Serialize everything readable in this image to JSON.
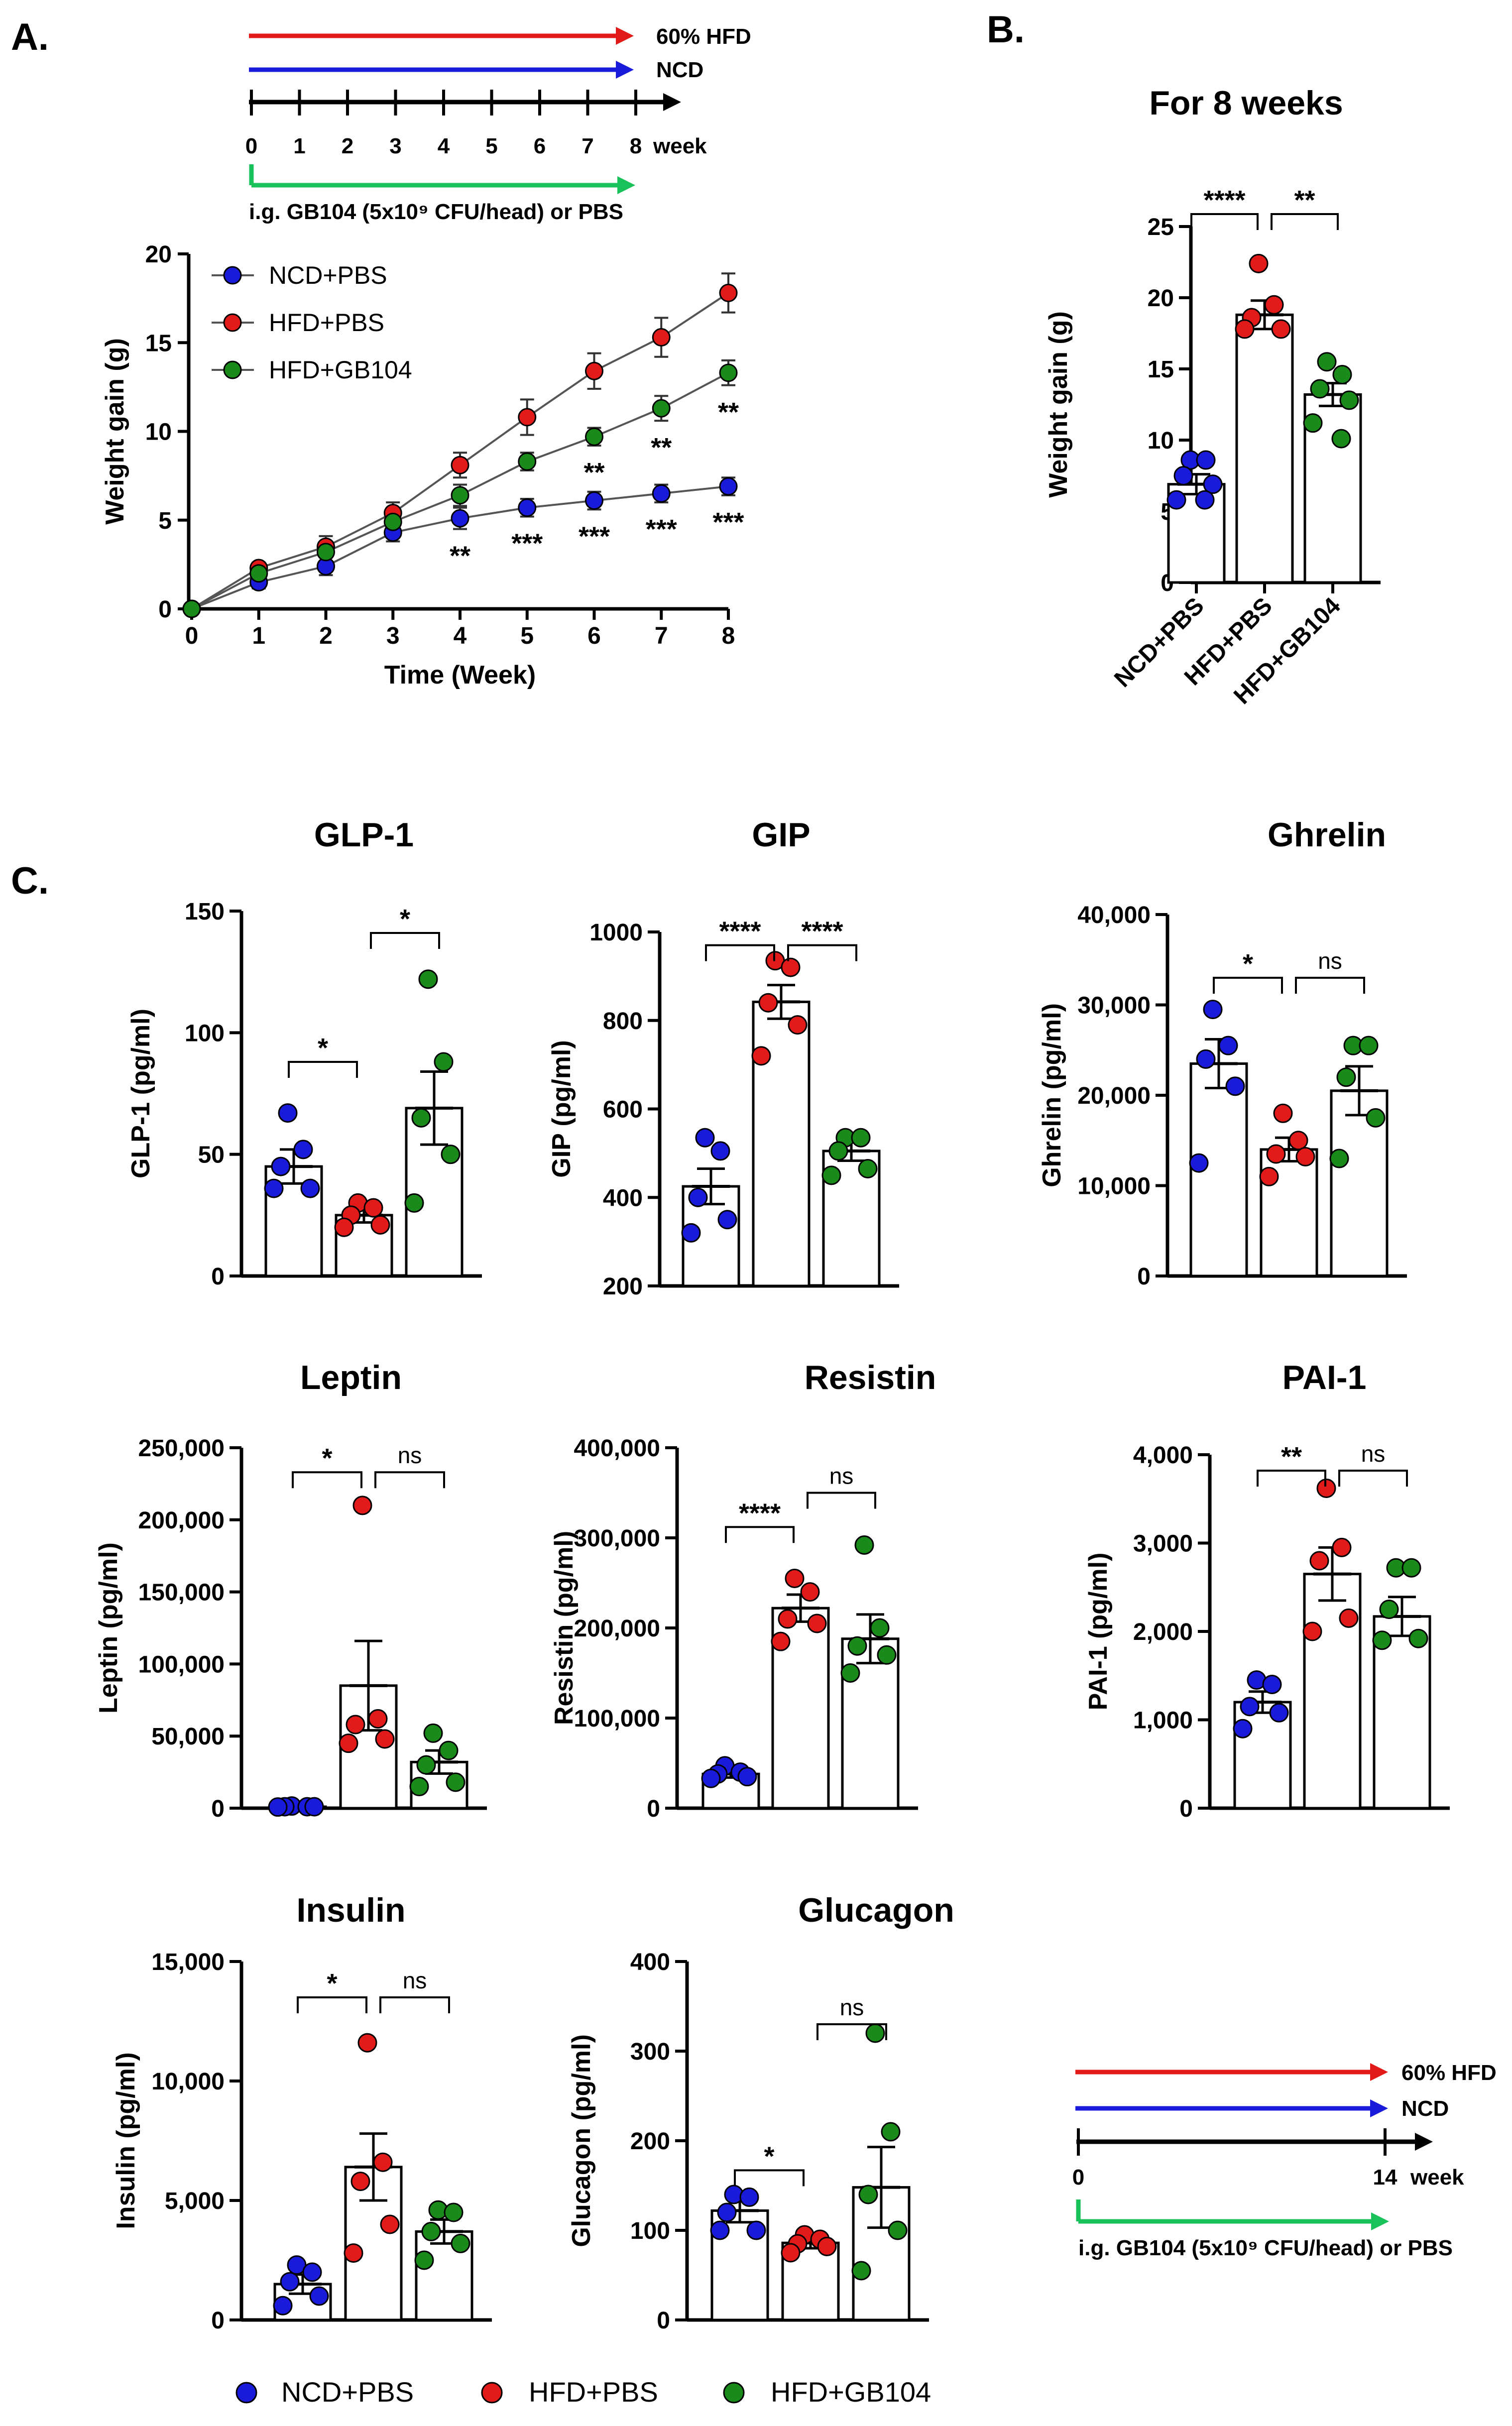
{
  "panels": {
    "a": "A.",
    "b": "B.",
    "c": "C."
  },
  "colors": {
    "ncd": "#1a1adb",
    "hfd": "#e31a1a",
    "gb104": "#1a8a1a",
    "arrow_green": "#19c15a"
  },
  "timeline_a": {
    "hfd_label": "60% HFD",
    "ncd_label": "NCD",
    "ticks": [
      "0",
      "1",
      "2",
      "3",
      "4",
      "5",
      "6",
      "7",
      "8"
    ],
    "unit": "week",
    "treatment": "i.g. GB104 (5x10⁹ CFU/head) or PBS"
  },
  "timeline_c": {
    "hfd_label": "60% HFD",
    "ncd_label": "NCD",
    "start": "0",
    "end": "14",
    "unit": "week",
    "treatment": "i.g. GB104 (5x10⁹ CFU/head) or PBS"
  },
  "legend_bottom": {
    "ncd": "NCD+PBS",
    "hfd": "HFD+PBS",
    "gb104": "HFD+GB104"
  },
  "chart_data": [
    {
      "id": "weight_line",
      "type": "line",
      "title": "",
      "xlabel": "Time (Week)",
      "ylabel": "Weight gain (g)",
      "x": [
        0,
        1,
        2,
        3,
        4,
        5,
        6,
        7,
        8
      ],
      "xlim": [
        0,
        8
      ],
      "ylim": [
        0,
        20
      ],
      "yticks": [
        0,
        5,
        10,
        15,
        20
      ],
      "series": [
        {
          "name": "NCD+PBS",
          "key": "ncd",
          "values": [
            0,
            1.5,
            2.4,
            4.3,
            5.1,
            5.7,
            6.1,
            6.5,
            6.9
          ],
          "err": [
            0.15,
            0.35,
            0.5,
            0.5,
            0.6,
            0.5,
            0.5,
            0.5,
            0.5
          ]
        },
        {
          "name": "HFD+PBS",
          "key": "hfd",
          "values": [
            0,
            2.3,
            3.5,
            5.4,
            8.1,
            10.8,
            13.4,
            15.3,
            17.8
          ],
          "err": [
            0.15,
            0.3,
            0.6,
            0.6,
            0.7,
            1.0,
            1.0,
            1.1,
            1.1
          ]
        },
        {
          "name": "HFD+GB104",
          "key": "gb104",
          "values": [
            0,
            2.0,
            3.2,
            4.9,
            6.4,
            8.3,
            9.7,
            11.3,
            13.3
          ],
          "err": [
            0.15,
            0.3,
            0.5,
            0.6,
            0.6,
            0.5,
            0.5,
            0.7,
            0.7
          ]
        }
      ],
      "annotations_gb104": [
        {
          "x": 6,
          "text": "**"
        },
        {
          "x": 7,
          "text": "**"
        },
        {
          "x": 8,
          "text": "**"
        }
      ],
      "annotations_ncd": [
        {
          "x": 4,
          "text": "**"
        },
        {
          "x": 5,
          "text": "***"
        },
        {
          "x": 6,
          "text": "***"
        },
        {
          "x": 7,
          "text": "***"
        },
        {
          "x": 8,
          "text": "***"
        }
      ]
    },
    {
      "id": "weight_bar",
      "type": "bar",
      "title": "For 8 weeks",
      "ylabel": "Weight gain (g)",
      "categories": [
        "NCD+PBS",
        "HFD+PBS",
        "HFD+GB104"
      ],
      "ylim": [
        0,
        25
      ],
      "yticks": [
        "0",
        "5",
        "10",
        "15",
        "20",
        "25"
      ],
      "values": [
        6.9,
        18.8,
        13.2
      ],
      "err": [
        0.7,
        1.0,
        0.8
      ],
      "points": [
        [
          8.6,
          8.6,
          7.5,
          6.9,
          5.8,
          5.8
        ],
        [
          22.4,
          19.5,
          18.6,
          17.8,
          17.8
        ],
        [
          15.5,
          14.6,
          13.6,
          12.8,
          11.2,
          10.1
        ]
      ],
      "sig": [
        {
          "from": 0,
          "to": 1,
          "text": "****"
        },
        {
          "from": 1,
          "to": 2,
          "text": "**"
        }
      ]
    },
    {
      "id": "glp1",
      "type": "bar",
      "title": "GLP-1",
      "ylabel": "GLP-1 (pg/ml)",
      "categories": [
        "NCD+PBS",
        "HFD+PBS",
        "HFD+GB104"
      ],
      "ylim": [
        0,
        150
      ],
      "yticks": [
        "0",
        "50",
        "100",
        "150"
      ],
      "values": [
        45,
        25,
        69
      ],
      "err": [
        7,
        3,
        15
      ],
      "points": [
        [
          67,
          52,
          45,
          36,
          36
        ],
        [
          30,
          28,
          25,
          21,
          20
        ],
        [
          122,
          88,
          65,
          50,
          30
        ]
      ],
      "sig": [
        {
          "from": 0,
          "to": 1,
          "text": "*",
          "y": 88
        },
        {
          "from": 1,
          "to": 2,
          "text": "*",
          "y": 141
        }
      ]
    },
    {
      "id": "gip",
      "type": "bar",
      "title": "GIP",
      "ylabel": "GIP (pg/ml)",
      "categories": [
        "NCD+PBS",
        "HFD+PBS",
        "HFD+GB104"
      ],
      "ylim": [
        200,
        1000
      ],
      "yticks": [
        "200",
        "400",
        "600",
        "800",
        "1000"
      ],
      "values": [
        425,
        842,
        505
      ],
      "err": [
        40,
        38,
        22
      ],
      "points": [
        [
          535,
          505,
          400,
          350,
          320
        ],
        [
          935,
          920,
          840,
          790,
          720
        ],
        [
          535,
          535,
          505,
          465,
          450
        ]
      ],
      "sig": [
        {
          "from": 0,
          "to": 1,
          "text": "****",
          "y": 970
        },
        {
          "from": 1,
          "to": 2,
          "text": "****",
          "y": 970
        }
      ]
    },
    {
      "id": "ghrelin",
      "type": "bar",
      "title": "Ghrelin",
      "ylabel": "Ghrelin (pg/ml)",
      "categories": [
        "NCD+PBS",
        "HFD+PBS",
        "HFD+GB104"
      ],
      "ylim": [
        0,
        40000
      ],
      "yticks": [
        "0",
        "10,000",
        "20,000",
        "30,000",
        "40,000"
      ],
      "values": [
        23500,
        14000,
        20500
      ],
      "err": [
        2700,
        1300,
        2700
      ],
      "points": [
        [
          29500,
          25500,
          24000,
          21000,
          12500
        ],
        [
          18000,
          15000,
          13500,
          13200,
          11000
        ],
        [
          25500,
          25500,
          22000,
          17500,
          13000
        ]
      ],
      "sig": [
        {
          "from": 0,
          "to": 1,
          "text": "*",
          "y": 33000
        },
        {
          "from": 1,
          "to": 2,
          "text": "ns",
          "y": 33000
        }
      ]
    },
    {
      "id": "leptin",
      "type": "bar",
      "title": "Leptin",
      "ylabel": "Leptin (pg/ml)",
      "categories": [
        "NCD+PBS",
        "HFD+PBS",
        "HFD+GB104"
      ],
      "ylim": [
        0,
        250000
      ],
      "yticks": [
        "0",
        "50,000",
        "100,000",
        "150,000",
        "200,000",
        "250,000"
      ],
      "values": [
        1000,
        85000,
        32000
      ],
      "err": [
        500,
        31000,
        8000
      ],
      "points": [
        [
          1500,
          1000,
          1000,
          1000,
          800
        ],
        [
          210000,
          62000,
          58000,
          48000,
          45000
        ],
        [
          52000,
          40000,
          30000,
          18000,
          15000
        ]
      ],
      "sig": [
        {
          "from": 0,
          "to": 1,
          "text": "*",
          "y": 233000
        },
        {
          "from": 1,
          "to": 2,
          "text": "ns",
          "y": 233000
        }
      ]
    },
    {
      "id": "resistin",
      "type": "bar",
      "title": "Resistin",
      "ylabel": "Resistin (pg/ml)",
      "categories": [
        "NCD+PBS",
        "HFD+PBS",
        "HFD+GB104"
      ],
      "ylim": [
        0,
        400000
      ],
      "yticks": [
        "0",
        "100,000",
        "200,000",
        "300,000",
        "400,000"
      ],
      "values": [
        38000,
        222000,
        188000
      ],
      "err": [
        4000,
        15000,
        27000
      ],
      "points": [
        [
          47000,
          40000,
          38000,
          35000,
          33000
        ],
        [
          255000,
          240000,
          210000,
          205000,
          185000
        ],
        [
          292000,
          200000,
          180000,
          170000,
          150000
        ]
      ],
      "sig": [
        {
          "from": 0,
          "to": 1,
          "text": "****",
          "y": 312000
        },
        {
          "from": 1,
          "to": 2,
          "text": "ns",
          "y": 350000
        }
      ]
    },
    {
      "id": "pai1",
      "type": "bar",
      "title": "PAI-1",
      "ylabel": "PAI-1 (pg/ml)",
      "categories": [
        "NCD+PBS",
        "HFD+PBS",
        "HFD+GB104"
      ],
      "ylim": [
        0,
        4000
      ],
      "yticks": [
        "0",
        "1,000",
        "2,000",
        "3,000",
        "4,000"
      ],
      "values": [
        1200,
        2650,
        2170
      ],
      "err": [
        120,
        300,
        220
      ],
      "points": [
        [
          1450,
          1400,
          1150,
          1080,
          900
        ],
        [
          3620,
          2950,
          2800,
          2150,
          2000
        ],
        [
          2720,
          2720,
          2250,
          1920,
          1900
        ]
      ],
      "sig": [
        {
          "from": 0,
          "to": 1,
          "text": "**",
          "y": 3820
        },
        {
          "from": 1,
          "to": 2,
          "text": "ns",
          "y": 3820
        }
      ]
    },
    {
      "id": "insulin",
      "type": "bar",
      "title": "Insulin",
      "ylabel": "Insulin (pg/ml)",
      "categories": [
        "NCD+PBS",
        "HFD+PBS",
        "HFD+GB104"
      ],
      "ylim": [
        0,
        15000
      ],
      "yticks": [
        "0",
        "5,000",
        "10,000",
        "15,000"
      ],
      "values": [
        1500,
        6400,
        3700
      ],
      "err": [
        400,
        1400,
        500
      ],
      "points": [
        [
          2300,
          2000,
          1600,
          1000,
          600
        ],
        [
          11600,
          6600,
          5800,
          4000,
          2800
        ],
        [
          4600,
          4500,
          3700,
          3200,
          2500
        ]
      ],
      "sig": [
        {
          "from": 0,
          "to": 1,
          "text": "*",
          "y": 13500
        },
        {
          "from": 1,
          "to": 2,
          "text": "ns",
          "y": 13500
        }
      ]
    },
    {
      "id": "glucagon",
      "type": "bar",
      "title": "Glucagon",
      "ylabel": "Glucagon (pg/ml)",
      "categories": [
        "NCD+PBS",
        "HFD+PBS",
        "HFD+GB104"
      ],
      "ylim": [
        0,
        400
      ],
      "yticks": [
        "0",
        "100",
        "200",
        "300",
        "400"
      ],
      "values": [
        122,
        86,
        148
      ],
      "err": [
        13,
        6,
        45
      ],
      "points": [
        [
          140,
          137,
          120,
          100,
          100
        ],
        [
          95,
          90,
          85,
          82,
          75
        ],
        [
          320,
          210,
          140,
          100,
          55
        ]
      ],
      "sig": [
        {
          "from": 0,
          "to": 1,
          "text": "*",
          "y": 167
        },
        {
          "from": 1,
          "to": 2,
          "text": "ns",
          "y": 330
        }
      ]
    }
  ]
}
